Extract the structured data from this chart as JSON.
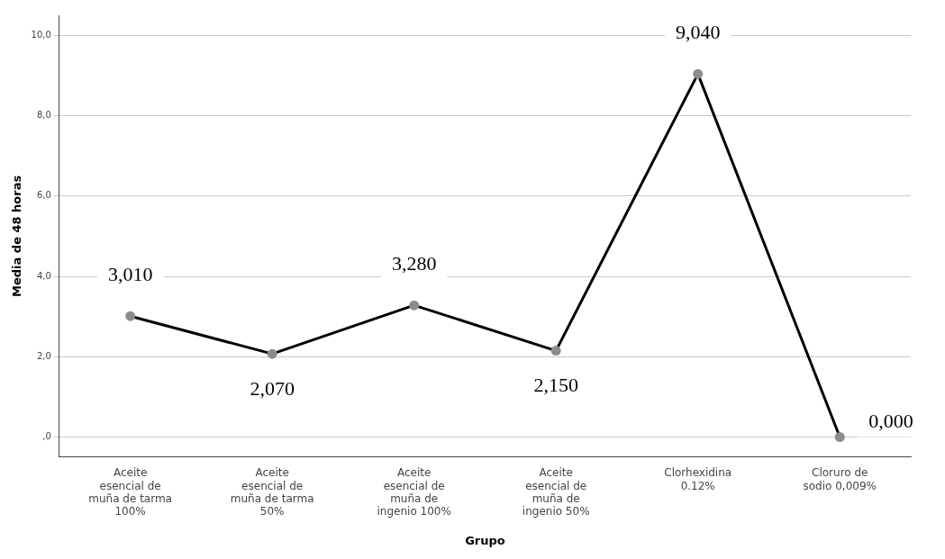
{
  "chart_data": {
    "type": "line",
    "xlabel": "Grupo",
    "ylabel": "Media de 48 horas",
    "categories": [
      "Aceite esencial de muña de tarma 100%",
      "Aceite esencial de muña de tarma 50%",
      "Aceite esencial de muña de ingenio 100%",
      "Aceite esencial de muña de ingenio 50%",
      "Clorhexidina 0.12%",
      "Cloruro de sodio 0,009%"
    ],
    "series": [
      {
        "color": "#000000",
        "values": [
          3.01,
          2.07,
          3.28,
          2.15,
          9.04,
          0.0
        ],
        "value_labels": [
          "3,010",
          "2,070",
          "3,280",
          "2,150",
          "9,040",
          "0,000"
        ]
      }
    ],
    "ylim": [
      -0.5,
      10.5
    ],
    "yticks": [
      {
        "value": 0,
        "label": ",0"
      },
      {
        "value": 2,
        "label": "2,0"
      },
      {
        "value": 4,
        "label": "4,0"
      },
      {
        "value": 6,
        "label": "6,0"
      },
      {
        "value": 8,
        "label": "8,0"
      },
      {
        "value": 10,
        "label": "10,0"
      }
    ],
    "grid": "y",
    "legend": false,
    "marker": "circle",
    "line_style": "solid"
  }
}
